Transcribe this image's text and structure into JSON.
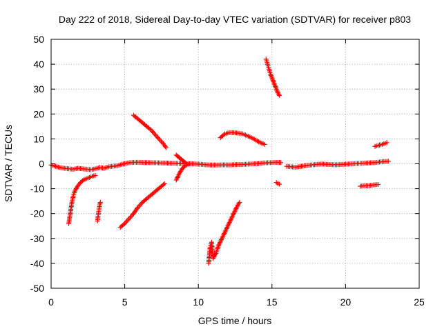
{
  "chart_data": {
    "type": "scatter",
    "title": "Day 222 of 2018, Sidereal Day-to-day VTEC variation (SDTVAR) for receiver p803",
    "xlabel": "GPS time / hours",
    "ylabel": "SDTVAR / TECUs",
    "xlim": [
      0,
      25
    ],
    "ylim": [
      -50,
      50
    ],
    "xticks": [
      0,
      5,
      10,
      15,
      20,
      25
    ],
    "yticks": [
      -50,
      -40,
      -30,
      -20,
      -10,
      0,
      10,
      20,
      30,
      40,
      50
    ],
    "grid": true,
    "marker": "+",
    "color": "#ff0000",
    "series": [
      {
        "values": [
          [
            0.0,
            -0.5
          ],
          [
            0.3,
            -1.0
          ],
          [
            0.6,
            -1.5
          ],
          [
            0.9,
            -1.8
          ],
          [
            1.2,
            -2.0
          ],
          [
            1.5,
            -2.2
          ],
          [
            1.8,
            -1.8
          ],
          [
            2.1,
            -2.0
          ],
          [
            2.4,
            -2.2
          ],
          [
            2.7,
            -2.4
          ],
          [
            3.0,
            -2.0
          ],
          [
            3.3,
            -1.5
          ],
          [
            3.6,
            -1.8
          ],
          [
            3.9,
            -1.2
          ],
          [
            4.2,
            -1.0
          ],
          [
            4.5,
            -0.8
          ],
          [
            4.8,
            -0.2
          ],
          [
            5.1,
            0.2
          ],
          [
            5.4,
            0.5
          ],
          [
            5.7,
            0.6
          ],
          [
            6.0,
            0.6
          ],
          [
            6.3,
            0.5
          ],
          [
            6.6,
            0.5
          ],
          [
            6.9,
            0.4
          ],
          [
            7.2,
            0.4
          ],
          [
            7.5,
            0.3
          ],
          [
            7.8,
            0.3
          ],
          [
            8.1,
            0.2
          ],
          [
            8.4,
            0.2
          ],
          [
            8.7,
            0.1
          ],
          [
            9.0,
            0.1
          ],
          [
            9.3,
            0.0
          ],
          [
            9.6,
            0.0
          ],
          [
            9.9,
            -0.1
          ],
          [
            10.2,
            -0.2
          ],
          [
            10.5,
            -0.4
          ],
          [
            10.8,
            -0.5
          ],
          [
            11.1,
            -0.5
          ],
          [
            11.4,
            -0.5
          ],
          [
            11.7,
            -0.4
          ],
          [
            12.0,
            -0.5
          ],
          [
            12.3,
            -0.4
          ],
          [
            12.6,
            -0.3
          ],
          [
            12.9,
            -0.3
          ],
          [
            13.2,
            -0.2
          ],
          [
            13.5,
            -0.1
          ],
          [
            13.8,
            0.0
          ],
          [
            14.1,
            0.1
          ],
          [
            14.4,
            0.3
          ],
          [
            14.7,
            0.4
          ],
          [
            15.0,
            0.5
          ],
          [
            15.3,
            0.6
          ],
          [
            15.6,
            0.5
          ]
        ]
      },
      {
        "values": [
          [
            16.0,
            -1.0
          ],
          [
            16.3,
            -1.2
          ],
          [
            16.6,
            -1.4
          ],
          [
            16.9,
            -1.1
          ],
          [
            17.2,
            -0.8
          ],
          [
            17.5,
            -0.6
          ],
          [
            17.8,
            -0.4
          ],
          [
            18.1,
            -0.2
          ],
          [
            18.4,
            -0.1
          ],
          [
            18.7,
            -0.2
          ],
          [
            19.0,
            -0.3
          ],
          [
            19.3,
            -0.4
          ],
          [
            19.6,
            -0.3
          ],
          [
            19.9,
            -0.2
          ],
          [
            20.2,
            -0.1
          ],
          [
            20.5,
            0.0
          ],
          [
            20.8,
            0.1
          ],
          [
            21.1,
            0.2
          ],
          [
            21.4,
            0.3
          ],
          [
            21.7,
            0.4
          ],
          [
            22.0,
            0.5
          ],
          [
            22.3,
            0.7
          ],
          [
            22.6,
            0.9
          ],
          [
            22.9,
            1.0
          ]
        ]
      },
      {
        "values": [
          [
            1.2,
            -24.0
          ],
          [
            1.3,
            -20.0
          ],
          [
            1.4,
            -16.0
          ],
          [
            1.5,
            -13.0
          ],
          [
            1.6,
            -11.0
          ],
          [
            1.8,
            -9.0
          ],
          [
            2.0,
            -7.5
          ],
          [
            2.2,
            -6.5
          ],
          [
            2.4,
            -6.0
          ],
          [
            2.6,
            -5.5
          ],
          [
            2.8,
            -5.0
          ],
          [
            3.0,
            -4.7
          ]
        ]
      },
      {
        "values": [
          [
            3.15,
            -23.0
          ],
          [
            3.2,
            -20.5
          ],
          [
            3.25,
            -18.5
          ],
          [
            3.3,
            -16.5
          ],
          [
            3.35,
            -15.5
          ]
        ]
      },
      {
        "values": [
          [
            4.7,
            -25.5
          ],
          [
            5.0,
            -24.0
          ],
          [
            5.3,
            -22.0
          ],
          [
            5.6,
            -20.0
          ],
          [
            5.9,
            -17.5
          ],
          [
            6.2,
            -15.5
          ],
          [
            6.5,
            -14.0
          ],
          [
            6.8,
            -12.5
          ],
          [
            7.1,
            -11.0
          ],
          [
            7.4,
            -9.5
          ],
          [
            7.7,
            -8.0
          ]
        ]
      },
      {
        "values": [
          [
            5.6,
            19.5
          ],
          [
            5.9,
            18.0
          ],
          [
            6.2,
            16.5
          ],
          [
            6.5,
            15.0
          ],
          [
            6.8,
            13.5
          ],
          [
            7.1,
            11.5
          ],
          [
            7.4,
            9.5
          ],
          [
            7.7,
            7.5
          ],
          [
            7.8,
            6.5
          ]
        ]
      },
      {
        "values": [
          [
            8.5,
            -6.5
          ],
          [
            8.7,
            -4.0
          ],
          [
            8.9,
            -2.0
          ],
          [
            9.1,
            -0.8
          ],
          [
            9.3,
            -0.2
          ]
        ]
      },
      {
        "values": [
          [
            8.5,
            3.5
          ],
          [
            8.7,
            2.5
          ],
          [
            8.9,
            1.5
          ],
          [
            9.1,
            0.5
          ]
        ]
      },
      {
        "values": [
          [
            10.7,
            -40.0
          ],
          [
            10.8,
            -33.5
          ],
          [
            10.9,
            -31.5
          ],
          [
            11.0,
            -38.0
          ],
          [
            11.1,
            -37.0
          ],
          [
            11.2,
            -36.0
          ],
          [
            11.3,
            -34.0
          ],
          [
            11.4,
            -32.5
          ],
          [
            11.6,
            -30.0
          ],
          [
            11.8,
            -27.5
          ],
          [
            12.0,
            -25.0
          ],
          [
            12.2,
            -22.5
          ],
          [
            12.4,
            -20.0
          ],
          [
            12.6,
            -17.5
          ],
          [
            12.8,
            -15.5
          ]
        ]
      },
      {
        "values": [
          [
            11.5,
            10.5
          ],
          [
            11.8,
            12.0
          ],
          [
            12.1,
            12.5
          ],
          [
            12.4,
            12.5
          ],
          [
            12.7,
            12.3
          ],
          [
            13.0,
            12.0
          ],
          [
            13.3,
            11.3
          ],
          [
            13.6,
            10.5
          ],
          [
            13.9,
            9.5
          ],
          [
            14.2,
            8.5
          ],
          [
            14.5,
            7.8
          ]
        ]
      },
      {
        "values": [
          [
            14.6,
            42.0
          ],
          [
            14.7,
            40.0
          ],
          [
            14.8,
            38.0
          ],
          [
            14.9,
            36.0
          ],
          [
            15.0,
            34.5
          ],
          [
            15.1,
            33.0
          ],
          [
            15.2,
            31.5
          ],
          [
            15.3,
            30.0
          ],
          [
            15.4,
            28.5
          ],
          [
            15.5,
            27.5
          ]
        ]
      },
      {
        "values": [
          [
            15.3,
            -7.5
          ],
          [
            15.4,
            -8.0
          ],
          [
            15.5,
            -8.2
          ]
        ]
      },
      {
        "values": [
          [
            21.0,
            -9.0
          ],
          [
            21.3,
            -8.8
          ],
          [
            21.6,
            -8.8
          ],
          [
            21.9,
            -8.5
          ],
          [
            22.2,
            -8.3
          ]
        ]
      },
      {
        "values": [
          [
            22.0,
            7.0
          ],
          [
            22.3,
            7.5
          ],
          [
            22.6,
            8.0
          ],
          [
            22.8,
            8.5
          ]
        ]
      }
    ]
  }
}
